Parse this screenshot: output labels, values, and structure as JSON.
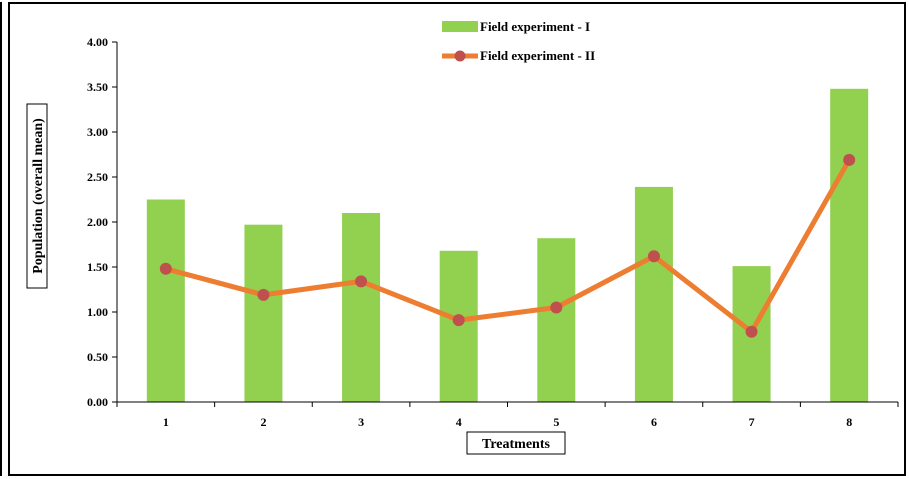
{
  "chart_data": {
    "type": "bar",
    "title": "",
    "xlabel": "Treatments",
    "ylabel": "Population (overall mean)",
    "categories": [
      "1",
      "2",
      "3",
      "4",
      "5",
      "6",
      "7",
      "8"
    ],
    "ylim": [
      0,
      4
    ],
    "yticks": [
      "0.00",
      "0.50",
      "1.00",
      "1.50",
      "2.00",
      "2.50",
      "3.00",
      "3.50",
      "4.00"
    ],
    "grid": false,
    "legend_position": "top-center",
    "series": [
      {
        "name": "Field experiment - I",
        "type": "bar",
        "color": "#92d050",
        "values": [
          2.25,
          1.97,
          2.1,
          1.68,
          1.82,
          2.39,
          1.51,
          3.48
        ]
      },
      {
        "name": "Field experiment - II",
        "type": "line",
        "color": "#ed7d31",
        "marker_color": "#c0504d",
        "values": [
          1.48,
          1.19,
          1.34,
          0.91,
          1.05,
          1.62,
          0.78,
          2.69
        ]
      }
    ]
  }
}
